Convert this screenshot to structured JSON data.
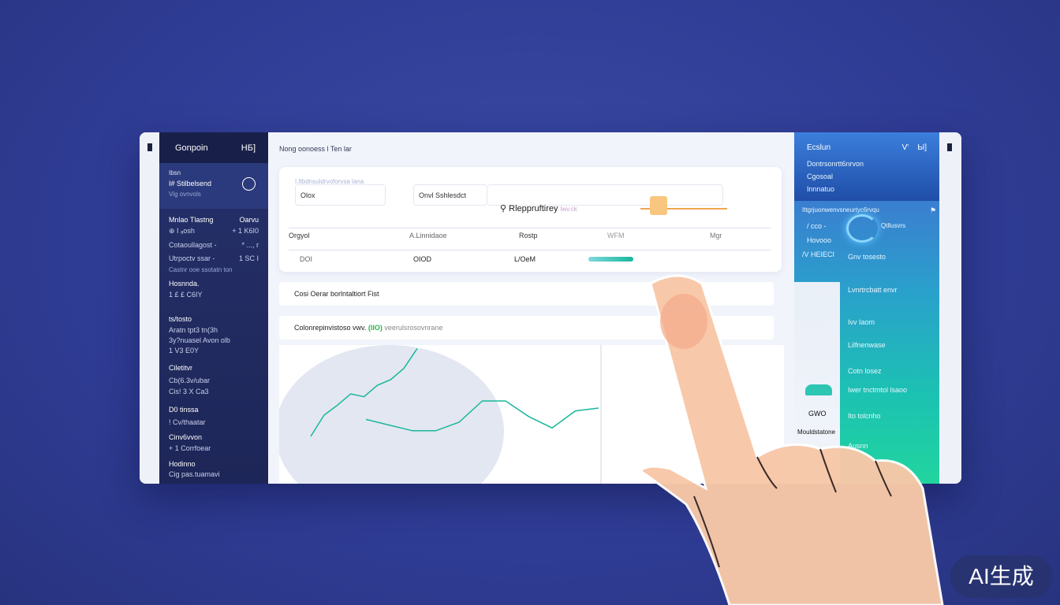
{
  "sidebar": {
    "title": "Gonpoin",
    "title_right": "HБ]",
    "user": {
      "label": "Ibsn",
      "name": "I# Stilbelsend",
      "sub": "Vig ovnvols"
    },
    "sections": [
      {
        "title": "Mnlao Tlastng",
        "right": "Oarvu",
        "rows": [
          [
            "⊕ I ₐosh",
            "+ 1 K6I0"
          ],
          [
            "Cotaoullagost -",
            "* ..., r"
          ],
          [
            "Utrpoctv ssar -",
            "1 SC I"
          ]
        ],
        "note": "Castnr ooe ssotatn ton"
      },
      {
        "title": "Hosnnda.",
        "rows": [
          [
            "1 £ £ C6IY",
            ""
          ]
        ]
      },
      {
        "title": "ts/tosto",
        "lines": [
          "Aratn tpt3 tn(3h",
          "3y?nuasel Avon olb",
          "1 V3 E0Y"
        ]
      },
      {
        "title": "Ciletitvr",
        "lines": [
          "Cb(6.3v/ubar",
          "Cis! 3 X Ca3"
        ]
      },
      {
        "title": "D0 tinssa",
        "lines": [
          "! Cv/thaatar"
        ]
      },
      {
        "title": "Cinv6vvon",
        "lines": [
          "+ 1 Corrfoear"
        ]
      },
      {
        "title": "Hodinno",
        "lines": [
          "Cig pas.tuamavi"
        ]
      }
    ]
  },
  "main": {
    "breadcrumb": "Nong oonoess l Ten lar",
    "card": {
      "field_label": "I.Itbdnsuldrvoforvsa  lana",
      "field1": "Olox",
      "field2": "Onvl Sshlesdct",
      "slider_label": "Rleppruftirey",
      "slider_hint": "lwv.ck",
      "slider_value": 0.1,
      "columns": [
        "Orgyol",
        "A.Linnidaoe",
        "Rostp",
        "WFM",
        "Mgr"
      ],
      "row": [
        "DOI",
        "OIOD",
        "L/OeM"
      ],
      "row_progress": 0.8
    },
    "pill1": "Cosi Oerar borlntaltiort Fist",
    "pill2_a": "Colonrepinvistoso vwv.",
    "pill2_badge": "(IIO)",
    "pill2_b": "veerulsrosovnrane"
  },
  "right_panel": {
    "title": "Ecslun",
    "icon_a": "V'",
    "icon_b": "Ы]",
    "lines": [
      "Dontrsonrtt6nrvon",
      "Cgosoal",
      "Innnatuo"
    ],
    "section_label": "Ittgrjuonwenvsneurtyc6rvqu",
    "stats": [
      "/ cco -",
      "Hovooo",
      "/V HEIECI"
    ],
    "stat_label": "Gnv tosesto",
    "gauge_label": "Qtllusvrs",
    "items": [
      "Lvnrtrcbatt envr",
      "Ivv Iaom",
      "Lilfnenwase",
      "Cotn losez",
      "Iwer tnctmtol lsaoo",
      "Ito tolcnho",
      "Ausnn"
    ],
    "overlay": [
      "GWO",
      "Mouldstatone"
    ]
  },
  "chart_data": {
    "type": "line",
    "series": [
      {
        "values": [
          30,
          45,
          52,
          60,
          58,
          66,
          70,
          78,
          92
        ]
      },
      {
        "values": [
          42,
          38,
          34,
          34,
          40,
          55,
          55,
          44,
          36,
          48,
          50
        ]
      }
    ]
  },
  "colors": {
    "background": "#2f3c94",
    "sidebar": "#1d2657",
    "accent_green": "#19b79a",
    "accent_orange": "#f0a650"
  },
  "badge": "AI生成"
}
